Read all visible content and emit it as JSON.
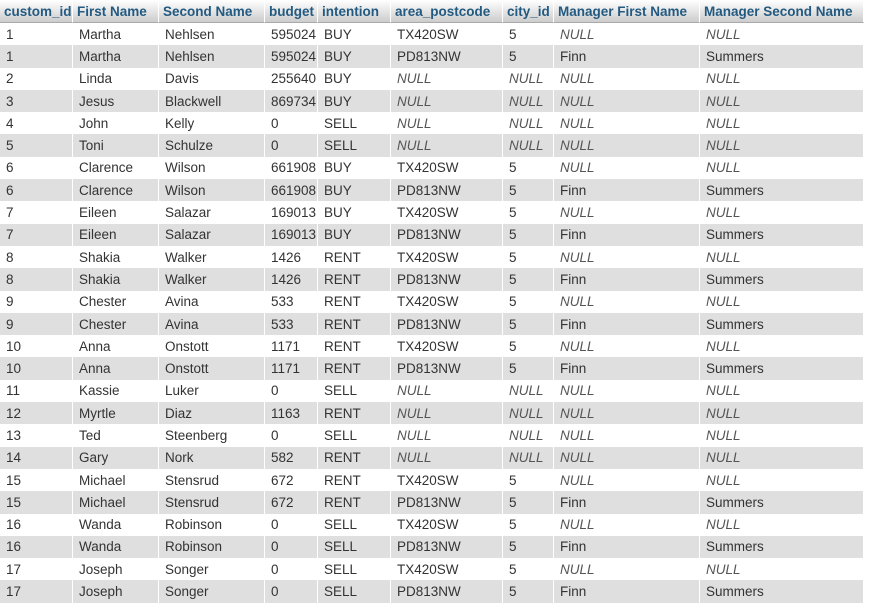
{
  "columns": [
    "custom_id",
    "First Name",
    "Second Name",
    "budget",
    "intention",
    "area_postcode",
    "city_id",
    "Manager First Name",
    "Manager Second Name"
  ],
  "rows": [
    [
      "1",
      "Martha",
      "Nehlsen",
      "595024",
      "BUY",
      "TX420SW",
      "5",
      "NULL",
      "NULL"
    ],
    [
      "1",
      "Martha",
      "Nehlsen",
      "595024",
      "BUY",
      "PD813NW",
      "5",
      "Finn",
      "Summers"
    ],
    [
      "2",
      "Linda",
      "Davis",
      "255640",
      "BUY",
      "NULL",
      "NULL",
      "NULL",
      "NULL"
    ],
    [
      "3",
      "Jesus",
      "Blackwell",
      "869734",
      "BUY",
      "NULL",
      "NULL",
      "NULL",
      "NULL"
    ],
    [
      "4",
      "John",
      "Kelly",
      "0",
      "SELL",
      "NULL",
      "NULL",
      "NULL",
      "NULL"
    ],
    [
      "5",
      "Toni",
      "Schulze",
      "0",
      "SELL",
      "NULL",
      "NULL",
      "NULL",
      "NULL"
    ],
    [
      "6",
      "Clarence",
      "Wilson",
      "661908",
      "BUY",
      "TX420SW",
      "5",
      "NULL",
      "NULL"
    ],
    [
      "6",
      "Clarence",
      "Wilson",
      "661908",
      "BUY",
      "PD813NW",
      "5",
      "Finn",
      "Summers"
    ],
    [
      "7",
      "Eileen",
      "Salazar",
      "169013",
      "BUY",
      "TX420SW",
      "5",
      "NULL",
      "NULL"
    ],
    [
      "7",
      "Eileen",
      "Salazar",
      "169013",
      "BUY",
      "PD813NW",
      "5",
      "Finn",
      "Summers"
    ],
    [
      "8",
      "Shakia",
      "Walker",
      "1426",
      "RENT",
      "TX420SW",
      "5",
      "NULL",
      "NULL"
    ],
    [
      "8",
      "Shakia",
      "Walker",
      "1426",
      "RENT",
      "PD813NW",
      "5",
      "Finn",
      "Summers"
    ],
    [
      "9",
      "Chester",
      "Avina",
      "533",
      "RENT",
      "TX420SW",
      "5",
      "NULL",
      "NULL"
    ],
    [
      "9",
      "Chester",
      "Avina",
      "533",
      "RENT",
      "PD813NW",
      "5",
      "Finn",
      "Summers"
    ],
    [
      "10",
      "Anna",
      "Onstott",
      "1171",
      "RENT",
      "TX420SW",
      "5",
      "NULL",
      "NULL"
    ],
    [
      "10",
      "Anna",
      "Onstott",
      "1171",
      "RENT",
      "PD813NW",
      "5",
      "Finn",
      "Summers"
    ],
    [
      "11",
      "Kassie",
      "Luker",
      "0",
      "SELL",
      "NULL",
      "NULL",
      "NULL",
      "NULL"
    ],
    [
      "12",
      "Myrtle",
      "Diaz",
      "1163",
      "RENT",
      "NULL",
      "NULL",
      "NULL",
      "NULL"
    ],
    [
      "13",
      "Ted",
      "Steenberg",
      "0",
      "SELL",
      "NULL",
      "NULL",
      "NULL",
      "NULL"
    ],
    [
      "14",
      "Gary",
      "Nork",
      "582",
      "RENT",
      "NULL",
      "NULL",
      "NULL",
      "NULL"
    ],
    [
      "15",
      "Michael",
      "Stensrud",
      "672",
      "RENT",
      "TX420SW",
      "5",
      "NULL",
      "NULL"
    ],
    [
      "15",
      "Michael",
      "Stensrud",
      "672",
      "RENT",
      "PD813NW",
      "5",
      "Finn",
      "Summers"
    ],
    [
      "16",
      "Wanda",
      "Robinson",
      "0",
      "SELL",
      "TX420SW",
      "5",
      "NULL",
      "NULL"
    ],
    [
      "16",
      "Wanda",
      "Robinson",
      "0",
      "SELL",
      "PD813NW",
      "5",
      "Finn",
      "Summers"
    ],
    [
      "17",
      "Joseph",
      "Songer",
      "0",
      "SELL",
      "TX420SW",
      "5",
      "NULL",
      "NULL"
    ],
    [
      "17",
      "Joseph",
      "Songer",
      "0",
      "SELL",
      "PD813NW",
      "5",
      "Finn",
      "Summers"
    ]
  ]
}
